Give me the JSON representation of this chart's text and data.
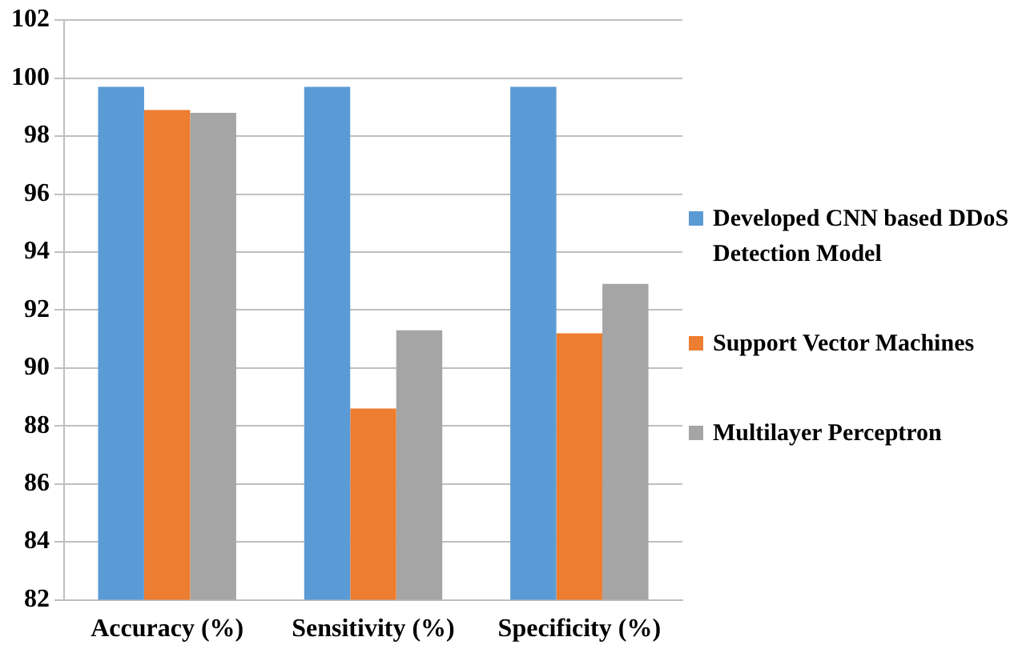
{
  "chart_data": {
    "type": "bar",
    "categories": [
      "Accuracy (%)",
      "Sensitivity (%)",
      "Specificity (%)"
    ],
    "series": [
      {
        "name": "Developed CNN based DDoS Detection Model",
        "color": "#5b9bd5",
        "values": [
          99.7,
          99.7,
          99.7
        ]
      },
      {
        "name": "Support Vector Machines",
        "color": "#ed7d31",
        "values": [
          98.9,
          88.6,
          91.2
        ]
      },
      {
        "name": "Multilayer Perceptron",
        "color": "#a5a5a5",
        "values": [
          98.8,
          91.3,
          92.9
        ]
      }
    ],
    "ylim": [
      82,
      102
    ],
    "yticks": [
      82,
      84,
      86,
      88,
      90,
      92,
      94,
      96,
      98,
      100,
      102
    ],
    "grid": "y",
    "legend": "right"
  }
}
